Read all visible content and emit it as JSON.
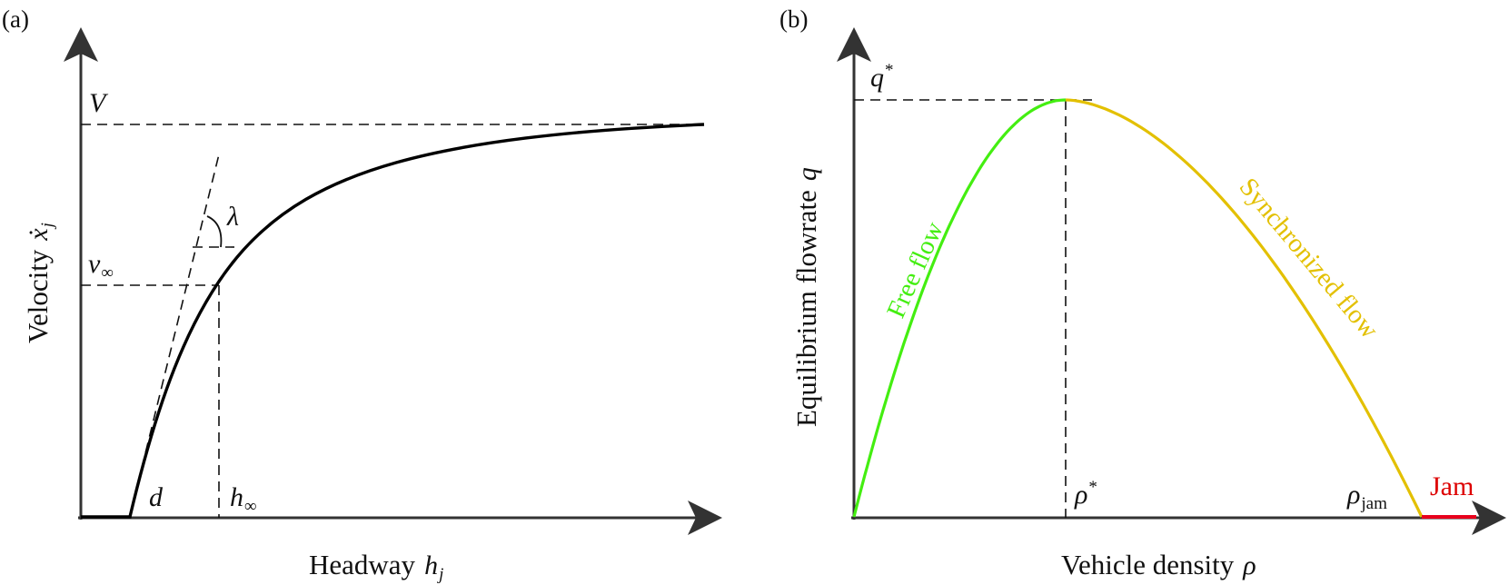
{
  "panel_a": {
    "panel_label": "(a)",
    "xlabel_text": "Headway",
    "xlabel_sym": "h",
    "xlabel_sub": "j",
    "ylabel_text": "Velocity",
    "ylabel_sym": "ẋ",
    "ylabel_sub": "j",
    "label_V": "V",
    "label_vinf": "v",
    "label_vinf_sub": "∞",
    "label_lambda": "λ",
    "label_d": "d",
    "label_hinf": "h",
    "label_hinf_sub": "∞"
  },
  "panel_b": {
    "panel_label": "(b)",
    "xlabel_text": "Vehicle density",
    "xlabel_sym": "ρ",
    "ylabel_text": "Equilibrium flowrate",
    "ylabel_sym": "q",
    "label_qstar": "q",
    "label_qstar_sup": "*",
    "label_rhostar": "ρ",
    "label_rhostar_sup": "*",
    "label_rhojam": "ρ",
    "label_rhojam_sub": "jam",
    "region_free": "Free flow",
    "region_sync": "Synchronized flow",
    "region_jam": "Jam"
  },
  "colors": {
    "axis": "#333333",
    "curve": "#000000",
    "free_flow": "#44ee11",
    "synchronized_flow": "#e3c000",
    "jam": "#e8001c",
    "jam_text": "#dd0000"
  },
  "icons": [
    "x-axis-arrow-icon",
    "y-axis-arrow-icon"
  ]
}
